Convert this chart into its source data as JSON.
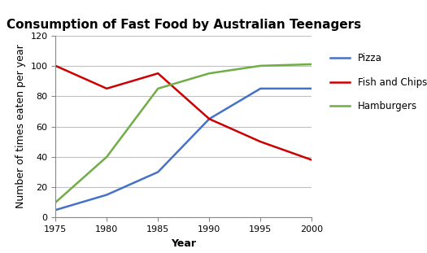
{
  "title": "Consumption of Fast Food by Australian Teenagers",
  "xlabel": "Year",
  "ylabel": "Number of times eaten per year",
  "years": [
    1975,
    1980,
    1985,
    1990,
    1995,
    2000
  ],
  "pizza": [
    5,
    15,
    30,
    65,
    85,
    85
  ],
  "fish_and_chips": [
    100,
    85,
    95,
    65,
    50,
    38
  ],
  "hamburgers": [
    10,
    40,
    85,
    95,
    100,
    101
  ],
  "pizza_color": "#4472C4",
  "fish_color": "#CC0000",
  "hamburgers_color": "#70AD47",
  "ylim": [
    0,
    120
  ],
  "yticks": [
    0,
    20,
    40,
    60,
    80,
    100,
    120
  ],
  "legend_labels": [
    "Pizza",
    "Fish and Chips",
    "Hamburgers"
  ],
  "background_color": "#FFFFFF",
  "grid_color": "#C0C0C0",
  "title_fontsize": 11,
  "axis_label_fontsize": 9,
  "tick_fontsize": 8,
  "legend_fontsize": 8.5
}
